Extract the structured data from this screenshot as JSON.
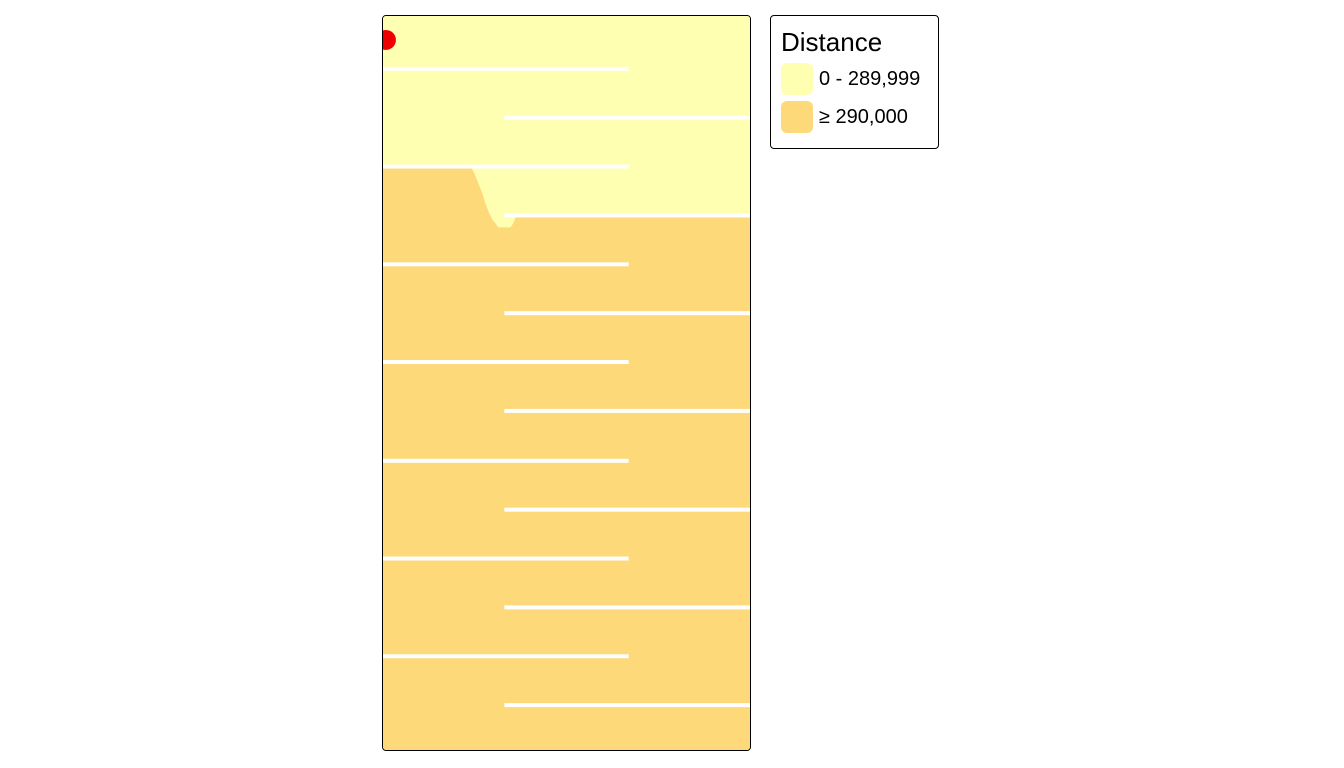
{
  "legend": {
    "title": "Distance",
    "items": [
      {
        "label": "0 - 289,999",
        "color": "#ffffb2"
      },
      {
        "label": "≥ 290,000",
        "color": "#fed97a"
      }
    ]
  },
  "map": {
    "region_colors": {
      "near": "#ffffb2",
      "far": "#fed97a",
      "barrier": "#ffffff",
      "origin_point": "#ee0000"
    }
  }
}
